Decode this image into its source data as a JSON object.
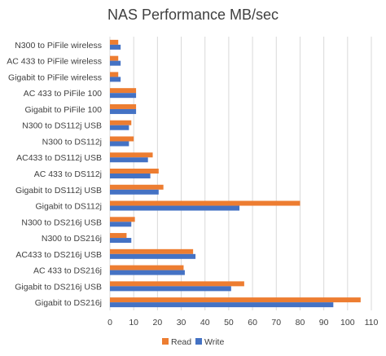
{
  "chart_data": {
    "type": "bar",
    "orientation": "horizontal",
    "title": "NAS Performance MB/sec",
    "categories": [
      "N300 to PiFile wireless",
      "AC 433 to PiFile wireless",
      "Gigabit to PiFile wireless",
      "AC 433 to PiFile 100",
      "Gigabit to PiFile 100",
      "N300 to DS112j USB",
      "N300 to DS112j",
      "AC433 to DS112j USB",
      "AC 433 to DS112j",
      "Gigabit to DS112j USB",
      "Gigabit to DS112j",
      "N300 to DS216j USB",
      "N300 to DS216j",
      "AC433 to DS216j USB",
      "AC 433 to DS216j",
      "Gigabit to DS216j USB",
      "Gigabit to DS216j"
    ],
    "series": [
      {
        "name": "Read",
        "color": "#ED7D31",
        "values": [
          3.5,
          3.5,
          3.5,
          11,
          11,
          9,
          10,
          18,
          20.5,
          22.5,
          80,
          10.5,
          7,
          35,
          31,
          56.5,
          105.5
        ]
      },
      {
        "name": "Write",
        "color": "#4472C4",
        "values": [
          4.5,
          4.5,
          4.5,
          11,
          11,
          8,
          8,
          16,
          17,
          20.5,
          54.5,
          9,
          9,
          36,
          31.5,
          51,
          94
        ]
      }
    ],
    "xlim": [
      0,
      110
    ],
    "xticks": [
      "0",
      "10",
      "20",
      "30",
      "40",
      "50",
      "60",
      "70",
      "80",
      "90",
      "100",
      "110"
    ],
    "grid": true,
    "legend": "bottom"
  }
}
